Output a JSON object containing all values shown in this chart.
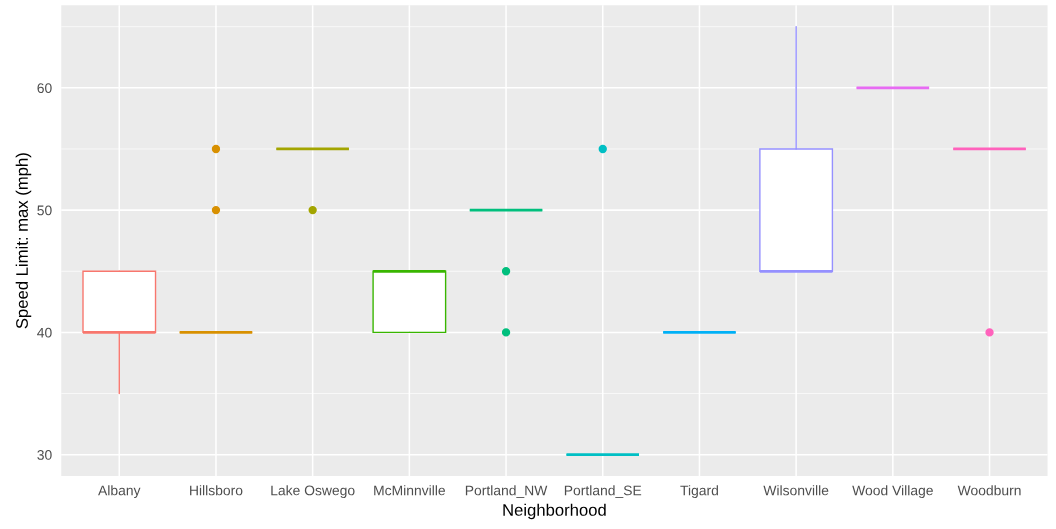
{
  "chart_data": {
    "type": "box",
    "xlabel": "Neighborhood",
    "ylabel": "Speed Limit: max (mph)",
    "categories": [
      "Albany",
      "Hillsboro",
      "Lake Oswego",
      "McMinnville",
      "Portland_NW",
      "Portland_SE",
      "Tigard",
      "Wilsonville",
      "Wood Village",
      "Woodburn"
    ],
    "colors": [
      "#f8766d",
      "#d89000",
      "#a3a500",
      "#39b600",
      "#00bf7d",
      "#00bfc4",
      "#00b0f6",
      "#9590ff",
      "#e76bf3",
      "#ff62bc"
    ],
    "boxes": [
      {
        "low": 35,
        "q1": 40,
        "median": 40,
        "q3": 45,
        "high": 45
      },
      {
        "low": 40,
        "q1": 40,
        "median": 40,
        "q3": 40,
        "high": 40,
        "outliers": [
          50,
          55
        ]
      },
      {
        "low": 55,
        "q1": 55,
        "median": 55,
        "q3": 55,
        "high": 55,
        "outliers": [
          50
        ]
      },
      {
        "low": 40,
        "q1": 40,
        "median": 45,
        "q3": 45,
        "high": 45
      },
      {
        "low": 50,
        "q1": 50,
        "median": 50,
        "q3": 50,
        "high": 50,
        "outliers": [
          40,
          45
        ]
      },
      {
        "low": 30,
        "q1": 30,
        "median": 30,
        "q3": 30,
        "high": 30,
        "outliers": [
          55
        ]
      },
      {
        "low": 40,
        "q1": 40,
        "median": 40,
        "q3": 40,
        "high": 40
      },
      {
        "low": 45,
        "q1": 45,
        "median": 45,
        "q3": 55,
        "high": 65
      },
      {
        "low": 60,
        "q1": 60,
        "median": 60,
        "q3": 60,
        "high": 60
      },
      {
        "low": 55,
        "q1": 55,
        "median": 55,
        "q3": 55,
        "high": 55,
        "outliers": [
          40
        ]
      }
    ],
    "ylim": [
      28.25,
      66.75
    ],
    "yticks": [
      30,
      40,
      50,
      60
    ],
    "grid": true
  }
}
